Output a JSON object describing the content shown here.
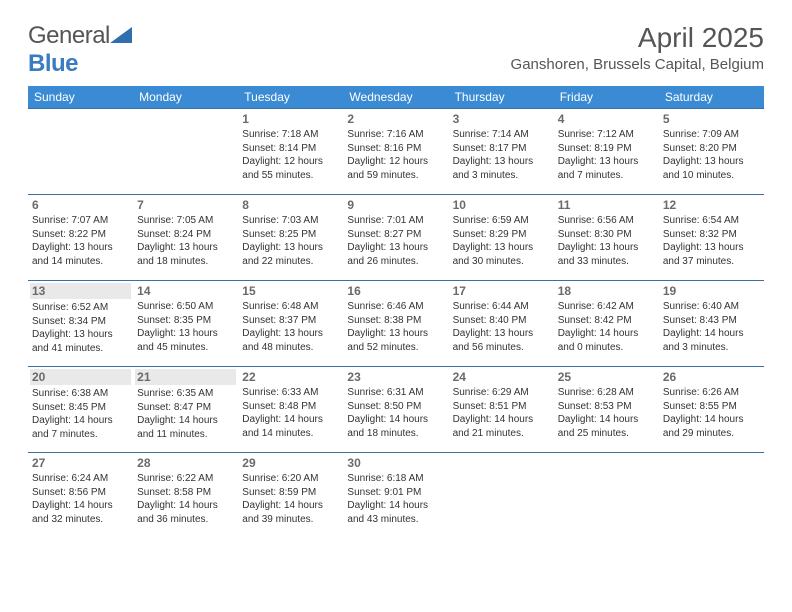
{
  "brand": {
    "part1": "General",
    "part2": "Blue"
  },
  "title": "April 2025",
  "location": "Ganshoren, Brussels Capital, Belgium",
  "colors": {
    "header_bg": "#3b8bd4",
    "row_border": "#3b6fa0",
    "brand_blue": "#3b7bbf",
    "text": "#333333",
    "muted": "#6a6a6a",
    "shade": "#e9e9e9"
  },
  "weekdays": [
    "Sunday",
    "Monday",
    "Tuesday",
    "Wednesday",
    "Thursday",
    "Friday",
    "Saturday"
  ],
  "weeks": [
    [
      {
        "n": "",
        "sr": "",
        "ss": "",
        "dl": ""
      },
      {
        "n": "",
        "sr": "",
        "ss": "",
        "dl": ""
      },
      {
        "n": "1",
        "sr": "Sunrise: 7:18 AM",
        "ss": "Sunset: 8:14 PM",
        "dl": "Daylight: 12 hours and 55 minutes."
      },
      {
        "n": "2",
        "sr": "Sunrise: 7:16 AM",
        "ss": "Sunset: 8:16 PM",
        "dl": "Daylight: 12 hours and 59 minutes."
      },
      {
        "n": "3",
        "sr": "Sunrise: 7:14 AM",
        "ss": "Sunset: 8:17 PM",
        "dl": "Daylight: 13 hours and 3 minutes."
      },
      {
        "n": "4",
        "sr": "Sunrise: 7:12 AM",
        "ss": "Sunset: 8:19 PM",
        "dl": "Daylight: 13 hours and 7 minutes."
      },
      {
        "n": "5",
        "sr": "Sunrise: 7:09 AM",
        "ss": "Sunset: 8:20 PM",
        "dl": "Daylight: 13 hours and 10 minutes."
      }
    ],
    [
      {
        "n": "6",
        "sr": "Sunrise: 7:07 AM",
        "ss": "Sunset: 8:22 PM",
        "dl": "Daylight: 13 hours and 14 minutes."
      },
      {
        "n": "7",
        "sr": "Sunrise: 7:05 AM",
        "ss": "Sunset: 8:24 PM",
        "dl": "Daylight: 13 hours and 18 minutes."
      },
      {
        "n": "8",
        "sr": "Sunrise: 7:03 AM",
        "ss": "Sunset: 8:25 PM",
        "dl": "Daylight: 13 hours and 22 minutes."
      },
      {
        "n": "9",
        "sr": "Sunrise: 7:01 AM",
        "ss": "Sunset: 8:27 PM",
        "dl": "Daylight: 13 hours and 26 minutes."
      },
      {
        "n": "10",
        "sr": "Sunrise: 6:59 AM",
        "ss": "Sunset: 8:29 PM",
        "dl": "Daylight: 13 hours and 30 minutes."
      },
      {
        "n": "11",
        "sr": "Sunrise: 6:56 AM",
        "ss": "Sunset: 8:30 PM",
        "dl": "Daylight: 13 hours and 33 minutes."
      },
      {
        "n": "12",
        "sr": "Sunrise: 6:54 AM",
        "ss": "Sunset: 8:32 PM",
        "dl": "Daylight: 13 hours and 37 minutes."
      }
    ],
    [
      {
        "n": "13",
        "sr": "Sunrise: 6:52 AM",
        "ss": "Sunset: 8:34 PM",
        "dl": "Daylight: 13 hours and 41 minutes.",
        "shaded": true
      },
      {
        "n": "14",
        "sr": "Sunrise: 6:50 AM",
        "ss": "Sunset: 8:35 PM",
        "dl": "Daylight: 13 hours and 45 minutes."
      },
      {
        "n": "15",
        "sr": "Sunrise: 6:48 AM",
        "ss": "Sunset: 8:37 PM",
        "dl": "Daylight: 13 hours and 48 minutes."
      },
      {
        "n": "16",
        "sr": "Sunrise: 6:46 AM",
        "ss": "Sunset: 8:38 PM",
        "dl": "Daylight: 13 hours and 52 minutes."
      },
      {
        "n": "17",
        "sr": "Sunrise: 6:44 AM",
        "ss": "Sunset: 8:40 PM",
        "dl": "Daylight: 13 hours and 56 minutes."
      },
      {
        "n": "18",
        "sr": "Sunrise: 6:42 AM",
        "ss": "Sunset: 8:42 PM",
        "dl": "Daylight: 14 hours and 0 minutes."
      },
      {
        "n": "19",
        "sr": "Sunrise: 6:40 AM",
        "ss": "Sunset: 8:43 PM",
        "dl": "Daylight: 14 hours and 3 minutes."
      }
    ],
    [
      {
        "n": "20",
        "sr": "Sunrise: 6:38 AM",
        "ss": "Sunset: 8:45 PM",
        "dl": "Daylight: 14 hours and 7 minutes.",
        "shaded": true
      },
      {
        "n": "21",
        "sr": "Sunrise: 6:35 AM",
        "ss": "Sunset: 8:47 PM",
        "dl": "Daylight: 14 hours and 11 minutes.",
        "shaded": true
      },
      {
        "n": "22",
        "sr": "Sunrise: 6:33 AM",
        "ss": "Sunset: 8:48 PM",
        "dl": "Daylight: 14 hours and 14 minutes."
      },
      {
        "n": "23",
        "sr": "Sunrise: 6:31 AM",
        "ss": "Sunset: 8:50 PM",
        "dl": "Daylight: 14 hours and 18 minutes."
      },
      {
        "n": "24",
        "sr": "Sunrise: 6:29 AM",
        "ss": "Sunset: 8:51 PM",
        "dl": "Daylight: 14 hours and 21 minutes."
      },
      {
        "n": "25",
        "sr": "Sunrise: 6:28 AM",
        "ss": "Sunset: 8:53 PM",
        "dl": "Daylight: 14 hours and 25 minutes."
      },
      {
        "n": "26",
        "sr": "Sunrise: 6:26 AM",
        "ss": "Sunset: 8:55 PM",
        "dl": "Daylight: 14 hours and 29 minutes."
      }
    ],
    [
      {
        "n": "27",
        "sr": "Sunrise: 6:24 AM",
        "ss": "Sunset: 8:56 PM",
        "dl": "Daylight: 14 hours and 32 minutes."
      },
      {
        "n": "28",
        "sr": "Sunrise: 6:22 AM",
        "ss": "Sunset: 8:58 PM",
        "dl": "Daylight: 14 hours and 36 minutes."
      },
      {
        "n": "29",
        "sr": "Sunrise: 6:20 AM",
        "ss": "Sunset: 8:59 PM",
        "dl": "Daylight: 14 hours and 39 minutes."
      },
      {
        "n": "30",
        "sr": "Sunrise: 6:18 AM",
        "ss": "Sunset: 9:01 PM",
        "dl": "Daylight: 14 hours and 43 minutes."
      },
      {
        "n": "",
        "sr": "",
        "ss": "",
        "dl": ""
      },
      {
        "n": "",
        "sr": "",
        "ss": "",
        "dl": ""
      },
      {
        "n": "",
        "sr": "",
        "ss": "",
        "dl": ""
      }
    ]
  ]
}
